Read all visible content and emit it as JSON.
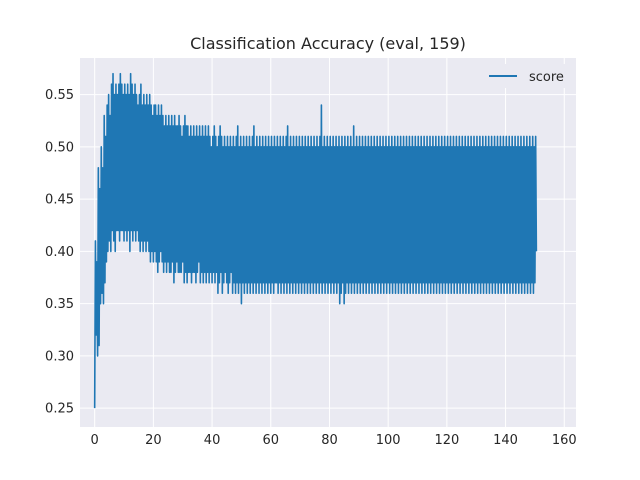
{
  "chart_data": {
    "type": "line",
    "title": "Classification Accuracy (eval, 159)",
    "xlabel": "",
    "ylabel": "",
    "xlim": [
      -5,
      164
    ],
    "ylim": [
      0.232,
      0.585
    ],
    "xticks": [
      0,
      20,
      40,
      60,
      80,
      100,
      120,
      140,
      160
    ],
    "yticks": [
      0.25,
      0.3,
      0.35,
      0.4,
      0.45,
      0.5,
      0.55
    ],
    "grid": true,
    "legend": "top-right",
    "colors": {
      "series": "#1f77b4",
      "plot_bg": "#eaeaf2",
      "grid": "#ffffff"
    },
    "series": [
      {
        "name": "score",
        "x_start": 0,
        "x_step": 0.25,
        "values": [
          0.25,
          0.41,
          0.32,
          0.39,
          0.3,
          0.48,
          0.31,
          0.46,
          0.35,
          0.5,
          0.36,
          0.48,
          0.35,
          0.53,
          0.37,
          0.51,
          0.39,
          0.54,
          0.4,
          0.55,
          0.41,
          0.53,
          0.4,
          0.56,
          0.42,
          0.57,
          0.41,
          0.55,
          0.4,
          0.56,
          0.42,
          0.55,
          0.42,
          0.56,
          0.41,
          0.57,
          0.42,
          0.56,
          0.42,
          0.55,
          0.41,
          0.56,
          0.42,
          0.55,
          0.41,
          0.56,
          0.42,
          0.55,
          0.4,
          0.57,
          0.42,
          0.56,
          0.41,
          0.55,
          0.42,
          0.56,
          0.41,
          0.55,
          0.42,
          0.54,
          0.41,
          0.55,
          0.4,
          0.56,
          0.41,
          0.54,
          0.4,
          0.55,
          0.41,
          0.54,
          0.4,
          0.55,
          0.41,
          0.54,
          0.4,
          0.55,
          0.39,
          0.54,
          0.4,
          0.53,
          0.39,
          0.54,
          0.4,
          0.54,
          0.39,
          0.53,
          0.38,
          0.54,
          0.39,
          0.53,
          0.4,
          0.54,
          0.39,
          0.53,
          0.38,
          0.52,
          0.39,
          0.53,
          0.38,
          0.52,
          0.39,
          0.53,
          0.38,
          0.52,
          0.38,
          0.53,
          0.39,
          0.52,
          0.37,
          0.53,
          0.38,
          0.52,
          0.39,
          0.52,
          0.38,
          0.53,
          0.38,
          0.52,
          0.38,
          0.51,
          0.39,
          0.52,
          0.37,
          0.53,
          0.38,
          0.52,
          0.37,
          0.52,
          0.38,
          0.51,
          0.38,
          0.52,
          0.37,
          0.51,
          0.38,
          0.52,
          0.38,
          0.51,
          0.37,
          0.52,
          0.38,
          0.51,
          0.39,
          0.52,
          0.37,
          0.51,
          0.38,
          0.52,
          0.37,
          0.51,
          0.38,
          0.52,
          0.37,
          0.51,
          0.38,
          0.52,
          0.37,
          0.51,
          0.38,
          0.5,
          0.37,
          0.51,
          0.38,
          0.52,
          0.37,
          0.51,
          0.38,
          0.5,
          0.36,
          0.51,
          0.37,
          0.52,
          0.38,
          0.51,
          0.36,
          0.5,
          0.37,
          0.51,
          0.38,
          0.5,
          0.37,
          0.51,
          0.36,
          0.5,
          0.37,
          0.51,
          0.38,
          0.5,
          0.36,
          0.51,
          0.37,
          0.5,
          0.36,
          0.51,
          0.37,
          0.52,
          0.36,
          0.5,
          0.37,
          0.51,
          0.35,
          0.5,
          0.37,
          0.51,
          0.36,
          0.5,
          0.37,
          0.51,
          0.36,
          0.5,
          0.37,
          0.51,
          0.36,
          0.5,
          0.37,
          0.51,
          0.36,
          0.52,
          0.37,
          0.5,
          0.36,
          0.51,
          0.37,
          0.5,
          0.36,
          0.51,
          0.37,
          0.5,
          0.36,
          0.51,
          0.37,
          0.5,
          0.36,
          0.51,
          0.37,
          0.5,
          0.36,
          0.51,
          0.37,
          0.5,
          0.36,
          0.51,
          0.37,
          0.5,
          0.36,
          0.51,
          0.37,
          0.5,
          0.37,
          0.51,
          0.36,
          0.5,
          0.37,
          0.51,
          0.36,
          0.5,
          0.37,
          0.51,
          0.36,
          0.5,
          0.37,
          0.51,
          0.36,
          0.52,
          0.37,
          0.5,
          0.36,
          0.51,
          0.37,
          0.5,
          0.36,
          0.51,
          0.37,
          0.5,
          0.36,
          0.51,
          0.37,
          0.5,
          0.36,
          0.51,
          0.37,
          0.5,
          0.36,
          0.51,
          0.37,
          0.5,
          0.36,
          0.51,
          0.37,
          0.5,
          0.36,
          0.51,
          0.37,
          0.5,
          0.36,
          0.51,
          0.37,
          0.5,
          0.36,
          0.51,
          0.37,
          0.5,
          0.36,
          0.51,
          0.37,
          0.5,
          0.36,
          0.51,
          0.37,
          0.54,
          0.36,
          0.5,
          0.37,
          0.51,
          0.36,
          0.5,
          0.37,
          0.51,
          0.36,
          0.5,
          0.37,
          0.51,
          0.36,
          0.5,
          0.37,
          0.51,
          0.36,
          0.5,
          0.37,
          0.51,
          0.36,
          0.5,
          0.37,
          0.51,
          0.35,
          0.5,
          0.36,
          0.51,
          0.37,
          0.5,
          0.35,
          0.51,
          0.36,
          0.5,
          0.37,
          0.51,
          0.36,
          0.5,
          0.37,
          0.51,
          0.36,
          0.5,
          0.37,
          0.52,
          0.36,
          0.5,
          0.37,
          0.51,
          0.36,
          0.5,
          0.37,
          0.51,
          0.36,
          0.5,
          0.37,
          0.51,
          0.36,
          0.5,
          0.37,
          0.51,
          0.36,
          0.5,
          0.37,
          0.51,
          0.36,
          0.5,
          0.37,
          0.51,
          0.36,
          0.5,
          0.37,
          0.51,
          0.36,
          0.5,
          0.37,
          0.51,
          0.36,
          0.5,
          0.37,
          0.51,
          0.36,
          0.5,
          0.37,
          0.51,
          0.36,
          0.5,
          0.37,
          0.51,
          0.36,
          0.5,
          0.37,
          0.51,
          0.36,
          0.5,
          0.37,
          0.51,
          0.36,
          0.5,
          0.37,
          0.51,
          0.36,
          0.5,
          0.37,
          0.51,
          0.36,
          0.5,
          0.37,
          0.51,
          0.36,
          0.5,
          0.37,
          0.51,
          0.36,
          0.5,
          0.37,
          0.51,
          0.36,
          0.5,
          0.37,
          0.51,
          0.36,
          0.5,
          0.37,
          0.51,
          0.36,
          0.5,
          0.37,
          0.51,
          0.36,
          0.5,
          0.37,
          0.51,
          0.36,
          0.5,
          0.37,
          0.51,
          0.36,
          0.5,
          0.37,
          0.51,
          0.36,
          0.5,
          0.37,
          0.51,
          0.36,
          0.5,
          0.37,
          0.51,
          0.36,
          0.5,
          0.37,
          0.51,
          0.36,
          0.5,
          0.37,
          0.51,
          0.36,
          0.5,
          0.37,
          0.51,
          0.36,
          0.5,
          0.37,
          0.51,
          0.36,
          0.5,
          0.37,
          0.51,
          0.36,
          0.5,
          0.37,
          0.51,
          0.36,
          0.5,
          0.37,
          0.51,
          0.36,
          0.5,
          0.37,
          0.51,
          0.36,
          0.5,
          0.37,
          0.51,
          0.36,
          0.5,
          0.37,
          0.51,
          0.36,
          0.5,
          0.37,
          0.51,
          0.36,
          0.5,
          0.37,
          0.51,
          0.36,
          0.5,
          0.37,
          0.51,
          0.36,
          0.5,
          0.37,
          0.51,
          0.36,
          0.5,
          0.37,
          0.51,
          0.36,
          0.5,
          0.37,
          0.51,
          0.36,
          0.5,
          0.37,
          0.51,
          0.36,
          0.5,
          0.37,
          0.51,
          0.36,
          0.5,
          0.37,
          0.51,
          0.36,
          0.5,
          0.37,
          0.51,
          0.36,
          0.5,
          0.37,
          0.51,
          0.36,
          0.5,
          0.37,
          0.51,
          0.36,
          0.5,
          0.37,
          0.51,
          0.36,
          0.5,
          0.37,
          0.51,
          0.36,
          0.5,
          0.37,
          0.51,
          0.36,
          0.5,
          0.37,
          0.51,
          0.36,
          0.5,
          0.37,
          0.51,
          0.36,
          0.5,
          0.37,
          0.51,
          0.36,
          0.5,
          0.37,
          0.51,
          0.36,
          0.5,
          0.37,
          0.51,
          0.36,
          0.5,
          0.37,
          0.51,
          0.36,
          0.5,
          0.37,
          0.51,
          0.36,
          0.5,
          0.37,
          0.51,
          0.36,
          0.5,
          0.37,
          0.51,
          0.36,
          0.5,
          0.37,
          0.51,
          0.36,
          0.5,
          0.37,
          0.51,
          0.4
        ]
      }
    ]
  }
}
